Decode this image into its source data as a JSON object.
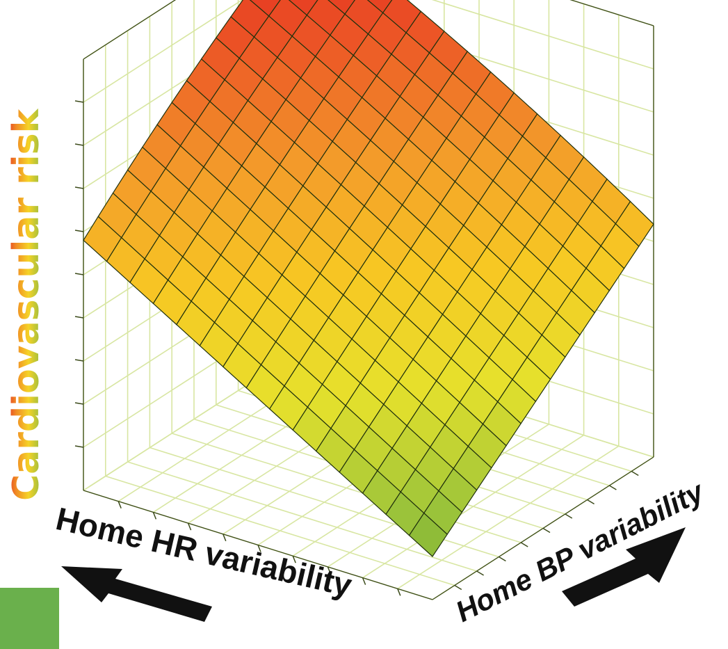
{
  "chart_data": {
    "type": "surface",
    "title": "",
    "xlabel": "Home HR variability",
    "ylabel": "Home BP variability",
    "zlabel": "Cardiovascular risk",
    "zlabel_colors": [
      "#6ab04c",
      "#f5d327",
      "#f08a24",
      "#e22b24"
    ],
    "grid": true,
    "mesh_resolution": 15,
    "surface_corners": {
      "low_hr_low_bp": 0.1,
      "high_hr_low_bp": 0.58,
      "low_hr_high_bp": 0.54,
      "high_hr_high_bp": 1.0
    },
    "colorscale": [
      "#5fa032",
      "#9cc43a",
      "#e6e12c",
      "#f7c823",
      "#f39a2a",
      "#ec5626",
      "#e2231f"
    ],
    "arrows": {
      "hr_direction": "decreasing-left",
      "bp_direction": "increasing-right"
    },
    "legend_swatch_color": "#6ab04c"
  }
}
